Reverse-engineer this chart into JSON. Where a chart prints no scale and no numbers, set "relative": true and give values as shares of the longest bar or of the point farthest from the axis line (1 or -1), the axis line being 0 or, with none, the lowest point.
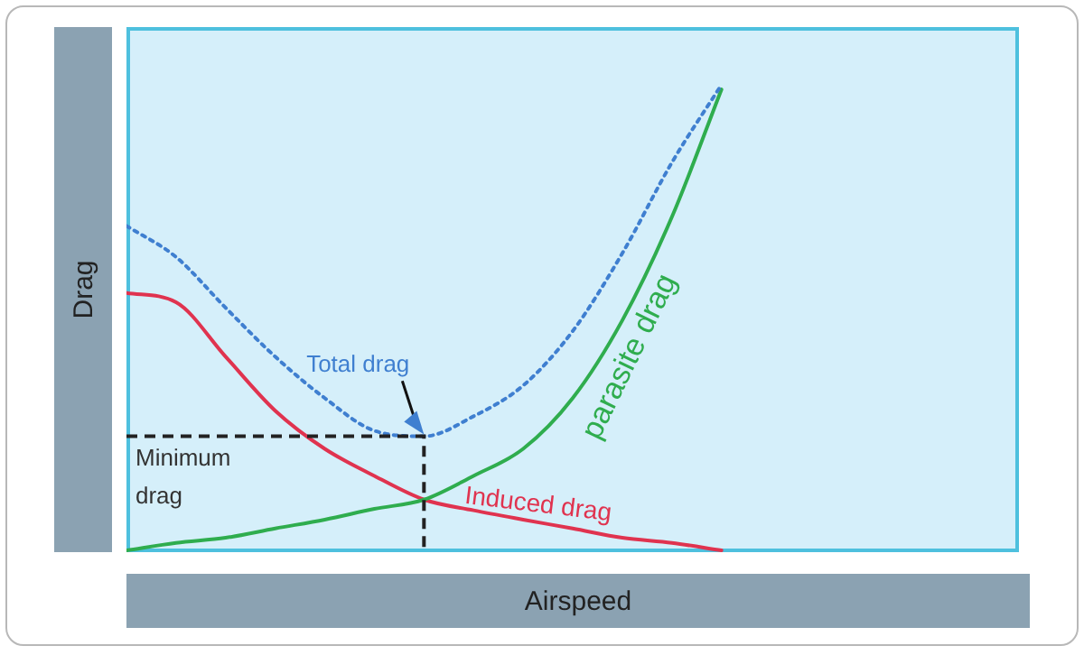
{
  "chart_data": {
    "type": "line",
    "relative": true,
    "xlabel": "Airspeed",
    "ylabel": "Drag",
    "categories": [
      null,
      null,
      null,
      null,
      null,
      null,
      null,
      null,
      null,
      null,
      null,
      null,
      null,
      null,
      null,
      null,
      null,
      null,
      null
    ],
    "series": [
      {
        "name": "Total drag",
        "color": "#3f7fd0",
        "line_style": "dotted",
        "values": [
          0.697,
          0.63,
          0.521,
          0.416,
          0.327,
          0.257,
          0.245,
          0.288,
          0.354,
          0.471,
          0.638,
          0.833,
          1.0,
          null,
          null,
          null,
          null,
          null,
          null
        ]
      },
      {
        "name": "parasite drag",
        "color": "#2fad4e",
        "line_style": "solid",
        "values": [
          0,
          0.016,
          0.027,
          0.047,
          0.066,
          0.089,
          0.109,
          0.16,
          0.218,
          0.327,
          0.494,
          0.716,
          0.99,
          null,
          null,
          null,
          null,
          null,
          null
        ]
      },
      {
        "name": "Induced drag",
        "color": "#e0334f",
        "line_style": "solid",
        "values": [
          0.553,
          0.533,
          0.416,
          0.3,
          0.218,
          0.16,
          0.109,
          0.086,
          0.066,
          0.047,
          0.027,
          0.016,
          0,
          null,
          null,
          null,
          null,
          null,
          null
        ]
      }
    ],
    "ref_lines": [
      {
        "axis": "y",
        "value": 0.245,
        "label": "Minimum drag",
        "line_style": "dashed",
        "color": "#222222"
      }
    ],
    "legend": false,
    "grid": false,
    "marker": "none"
  }
}
